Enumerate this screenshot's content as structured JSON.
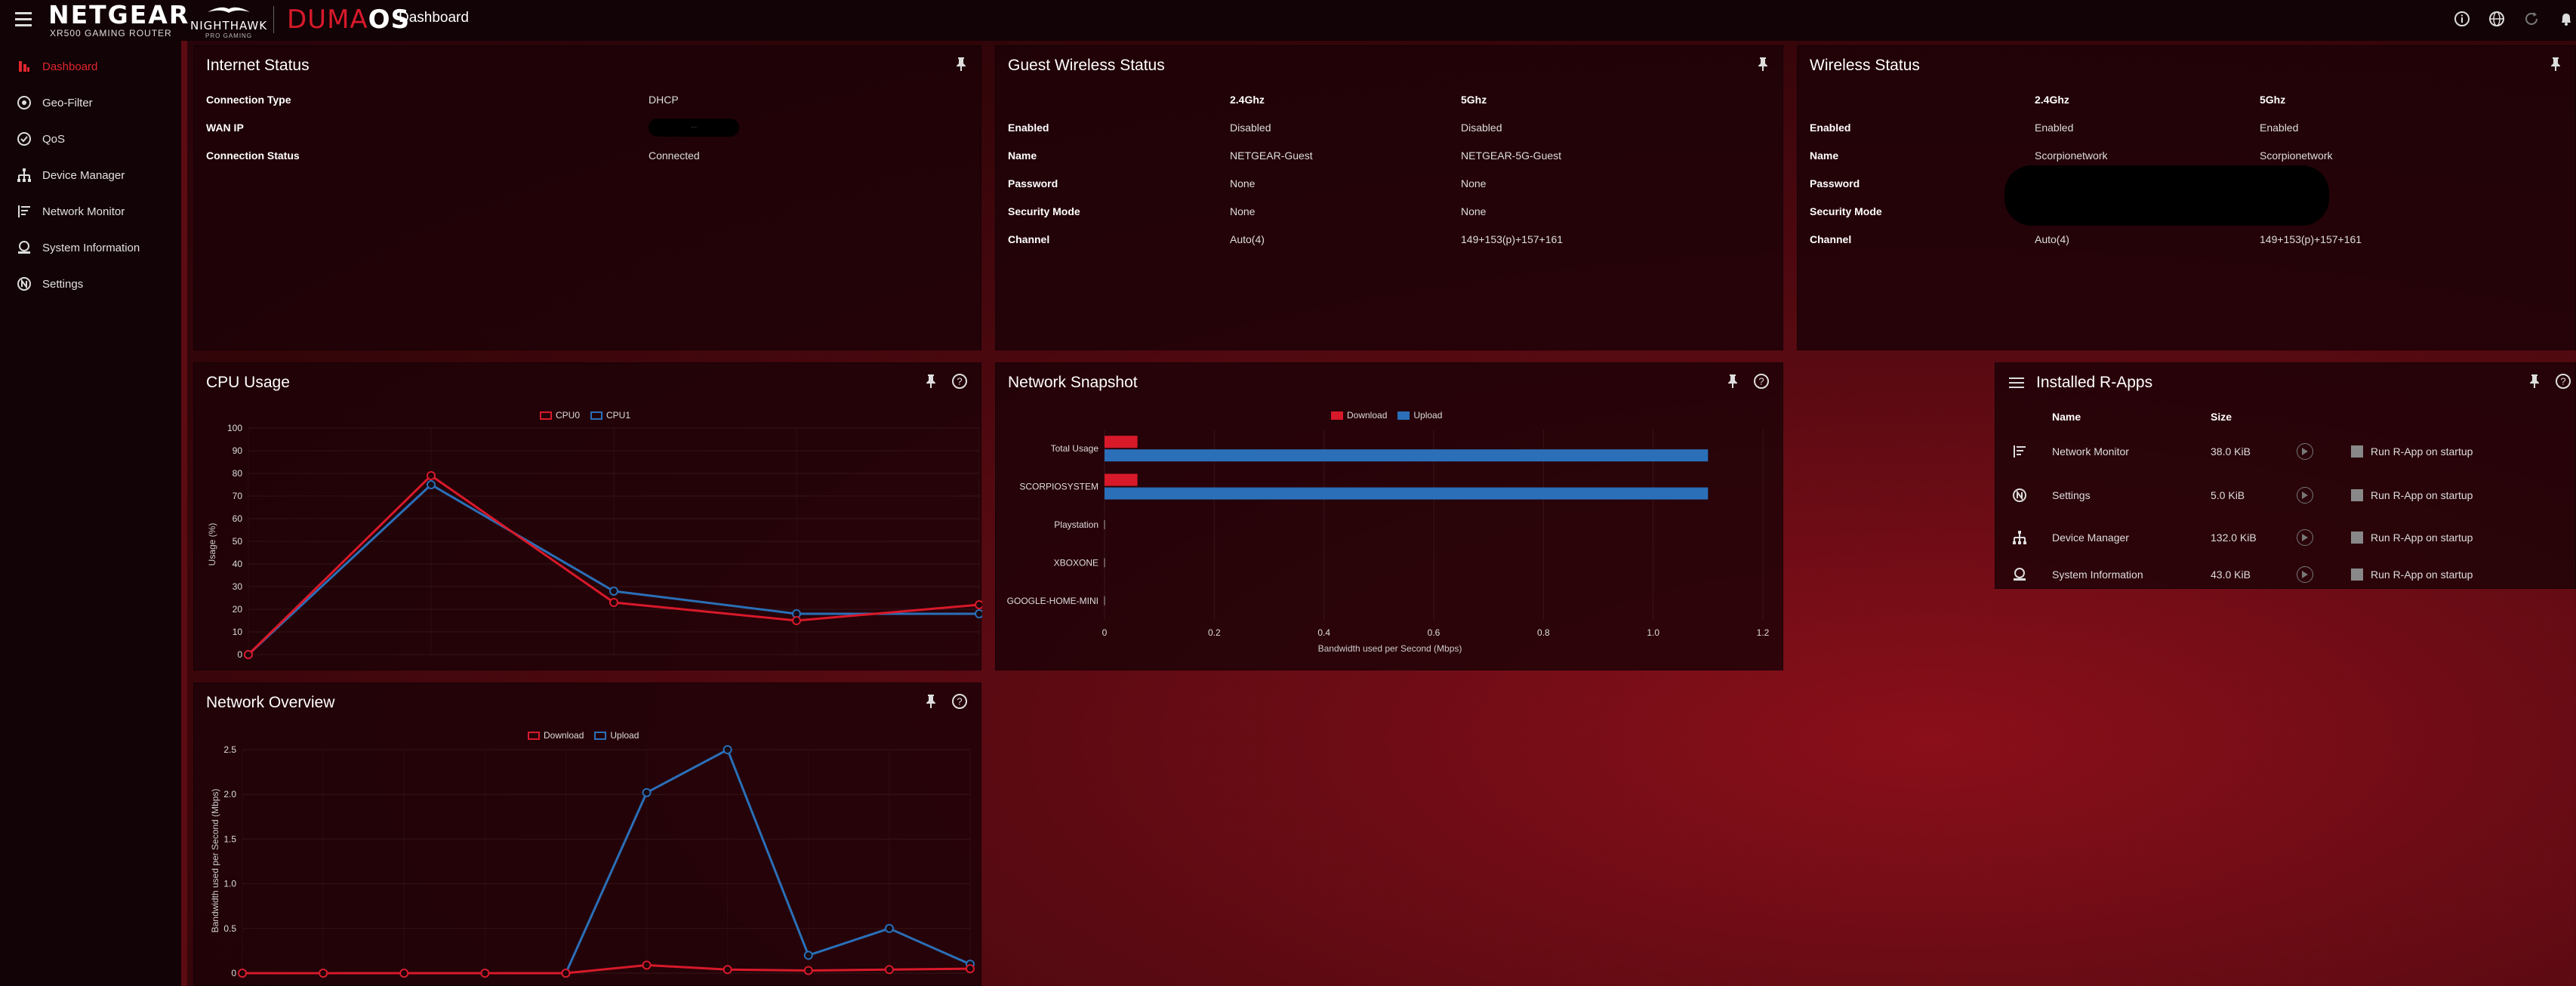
{
  "header": {
    "brand": "NETGEAR",
    "brand_sub": "XR500 GAMING ROUTER",
    "nighthawk": "NIGHTHAWK",
    "nighthawk_sub": "PRO GAMING",
    "duma_1": "DUMA",
    "duma_2": "OS",
    "page_title": "Dashboard",
    "icons": [
      "info-icon",
      "globe-icon",
      "refresh-icon",
      "bell-icon"
    ]
  },
  "sidebar": {
    "items": [
      {
        "label": "Dashboard",
        "icon": "dashboard-icon"
      },
      {
        "label": "Geo-Filter",
        "icon": "geo-filter-icon"
      },
      {
        "label": "QoS",
        "icon": "qos-icon"
      },
      {
        "label": "Device Manager",
        "icon": "device-manager-icon"
      },
      {
        "label": "Network Monitor",
        "icon": "network-monitor-icon"
      },
      {
        "label": "System Information",
        "icon": "system-information-icon"
      },
      {
        "label": "Settings",
        "icon": "settings-icon"
      }
    ]
  },
  "internet_status": {
    "title": "Internet Status",
    "rows": [
      {
        "key": "Connection Type",
        "value": "DHCP"
      },
      {
        "key": "WAN IP",
        "value": "..."
      },
      {
        "key": "Connection Status",
        "value": "Connected"
      }
    ]
  },
  "guest_wireless": {
    "title": "Guest Wireless Status",
    "col1": "2.4Ghz",
    "col2": "5Ghz",
    "rows": [
      {
        "key": "Enabled",
        "v1": "Disabled",
        "v2": "Disabled"
      },
      {
        "key": "Name",
        "v1": "NETGEAR-Guest",
        "v2": "NETGEAR-5G-Guest"
      },
      {
        "key": "Password",
        "v1": "None",
        "v2": "None"
      },
      {
        "key": "Security Mode",
        "v1": "None",
        "v2": "None"
      },
      {
        "key": "Channel",
        "v1": "Auto(4)",
        "v2": "149+153(p)+157+161"
      }
    ]
  },
  "wireless": {
    "title": "Wireless Status",
    "col1": "2.4Ghz",
    "col2": "5Ghz",
    "rows": [
      {
        "key": "Enabled",
        "v1": "Enabled",
        "v2": "Enabled"
      },
      {
        "key": "Name",
        "v1": "Scorpionetwork",
        "v2": "Scorpionetwork"
      },
      {
        "key": "Password",
        "v1": "",
        "v2": ""
      },
      {
        "key": "Security Mode",
        "v1": "",
        "v2": ""
      },
      {
        "key": "Channel",
        "v1": "Auto(4)",
        "v2": "149+153(p)+157+161"
      }
    ]
  },
  "cpu_usage": {
    "title": "CPU Usage"
  },
  "network_snapshot": {
    "title": "Network Snapshot"
  },
  "network_overview": {
    "title": "Network Overview"
  },
  "installed_rapps": {
    "title": "Installed R-Apps",
    "col_name": "Name",
    "col_size": "Size",
    "run_label": "Run R-App on startup",
    "apps": [
      {
        "name": "Network Monitor",
        "size": "38.0 KiB",
        "icon": "network-monitor-icon"
      },
      {
        "name": "Settings",
        "size": "5.0 KiB",
        "icon": "settings-icon"
      },
      {
        "name": "Device Manager",
        "size": "132.0 KiB",
        "icon": "device-manager-icon"
      },
      {
        "name": "System Information",
        "size": "43.0 KiB",
        "icon": "system-information-icon"
      }
    ]
  },
  "colors": {
    "red": "#d8192a",
    "blue": "#2a6fb8",
    "accent": "#e0262f"
  },
  "chart_data": [
    {
      "type": "line",
      "ylabel": "Usage (%)",
      "ylim": [
        0,
        100
      ],
      "yticks": [
        "0",
        "10",
        "20",
        "30",
        "40",
        "50",
        "60",
        "70",
        "80",
        "90",
        "100"
      ],
      "x": [
        0,
        1,
        2,
        3,
        4
      ],
      "series": [
        {
          "name": "CPU0",
          "values": [
            0,
            79,
            23,
            15,
            22
          ]
        },
        {
          "name": "CPU1",
          "values": [
            0,
            75,
            28,
            18,
            18
          ]
        }
      ],
      "legend": "top-center"
    },
    {
      "type": "bar",
      "orientation": "horizontal",
      "categories": [
        "Total Usage",
        "SCORPIOSYSTEM",
        "Playstation",
        "XBOXONE",
        "GOOGLE-HOME-MINI"
      ],
      "series": [
        {
          "name": "Download",
          "values": [
            0.06,
            0.06,
            0,
            0,
            0
          ]
        },
        {
          "name": "Upload",
          "values": [
            1.1,
            1.1,
            0,
            0,
            0
          ]
        }
      ],
      "xlabel": "Bandwidth used per Second (Mbps)",
      "xlim": [
        0,
        1.2
      ],
      "xticks": [
        "0",
        "0.2",
        "0.4",
        "0.6",
        "0.8",
        "1.0",
        "1.2"
      ],
      "legend": "top-center"
    },
    {
      "type": "line",
      "ylabel": "Bandwidth used per Second (Mbps)",
      "ylim": [
        0,
        2.5
      ],
      "yticks": [
        "0",
        "0.5",
        "1.0",
        "1.5",
        "2.0",
        "2.5"
      ],
      "x": [
        0,
        1,
        2,
        3,
        4,
        5,
        6,
        7,
        8,
        9
      ],
      "series": [
        {
          "name": "Download",
          "values": [
            0,
            0,
            0,
            0,
            0,
            0.09,
            0.04,
            0.03,
            0.04,
            0.05
          ]
        },
        {
          "name": "Upload",
          "values": [
            0,
            0,
            0,
            0,
            0,
            2.02,
            2.5,
            0.2,
            0.5,
            0.1
          ]
        }
      ],
      "legend": "top-center"
    }
  ]
}
